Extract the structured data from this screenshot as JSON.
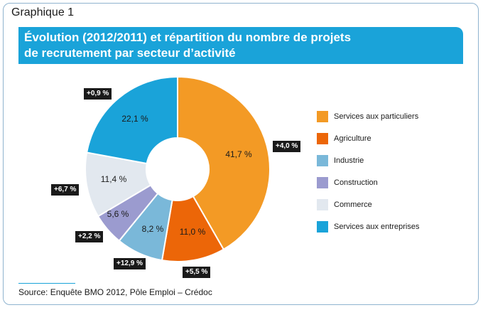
{
  "header": {
    "graph_label": "Graphique 1",
    "title_line1": "Évolution (2012/2011) et répartition du nombre de projets",
    "title_line2": "de recrutement par secteur d’activité"
  },
  "chart_data": {
    "type": "pie",
    "donut": true,
    "series": [
      {
        "name": "Services aux particuliers",
        "value": 41.7,
        "label": "41,7 %",
        "change": "+4,0 %",
        "color": "#f39a25"
      },
      {
        "name": "Agriculture",
        "value": 11.0,
        "label": "11,0 %",
        "change": "+5,5 %",
        "color": "#ec6608"
      },
      {
        "name": "Industrie",
        "value": 8.2,
        "label": "8,2 %",
        "change": "+12,9 %",
        "color": "#7ab8d9"
      },
      {
        "name": "Construction",
        "value": 5.6,
        "label": "5,6 %",
        "change": "+2,2 %",
        "color": "#9b9bcf"
      },
      {
        "name": "Commerce",
        "value": 11.4,
        "label": "11,4 %",
        "change": "+6,7 %",
        "color": "#e2e8ef"
      },
      {
        "name": "Services aux entreprises",
        "value": 22.1,
        "label": "22,1 %",
        "change": "+0,9 %",
        "color": "#1aa3d9"
      }
    ],
    "legend_position": "right"
  },
  "source": "Source: Enquête BMO 2012, Pôle Emploi – Crédoc"
}
